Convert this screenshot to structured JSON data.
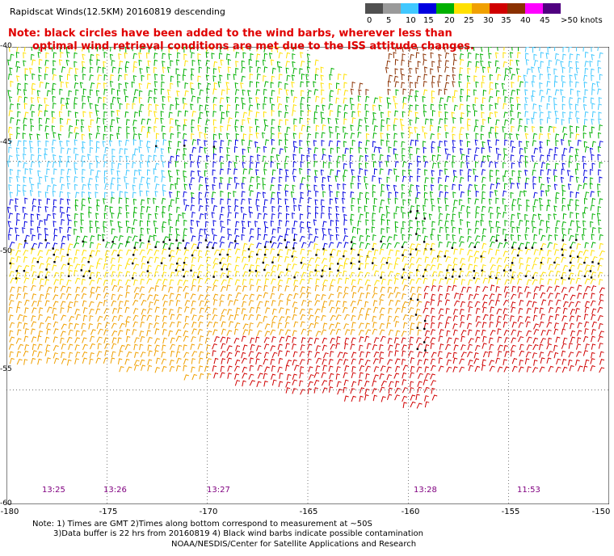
{
  "title": "Rapidscat Winds(12.5KM) 20160819 descending",
  "note_line1": "Note: black circles have been added to the wind barbs, wherever less than",
  "note_line2": "optimal wind retrieval conditions are met due to the ISS attitude changes.",
  "speed_scale": {
    "labels": [
      "0",
      "5",
      "10",
      "15",
      "20",
      "25",
      "30",
      "35",
      "40",
      "45",
      ">50 knots"
    ],
    "colors": [
      "#505050",
      "#9a9a9a",
      "#40c8ff",
      "#0000e0",
      "#00b000",
      "#ffe000",
      "#f0a000",
      "#d00000",
      "#8a3000",
      "#ff00ff",
      "#500080"
    ]
  },
  "map": {
    "lon_labels": [
      "-180",
      "-175",
      "-170",
      "-165",
      "-160",
      "-155",
      "-150"
    ],
    "lat_labels": [
      "-40",
      "-45",
      "-50",
      "-55",
      "-60"
    ],
    "time_labels": [
      "13:25",
      "13:26",
      "13:27",
      "13:28",
      "11:53"
    ]
  },
  "footer": {
    "line1": "Note: 1) Times are GMT 2)Times along bottom correspond to measurement at ~50S",
    "line2": "3)Data buffer is 22 hrs from 20160819 4) Black wind barbs indicate possible contamination",
    "credit": "NOAA/NESDIS/Center for Satellite Applications and Research"
  }
}
